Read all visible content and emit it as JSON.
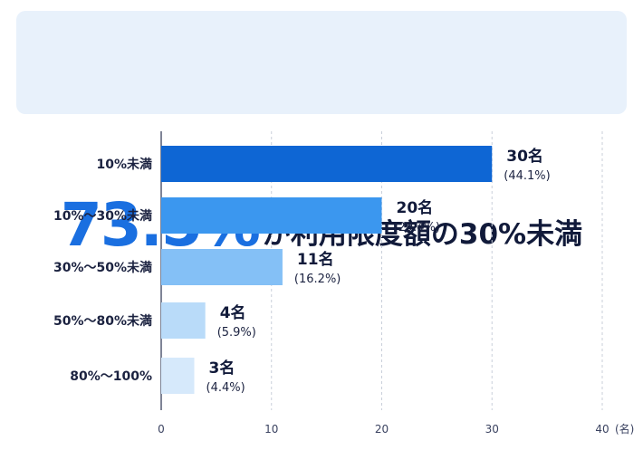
{
  "headline": {
    "big": "73.5%",
    "rest": "が利用限度額の30%未満"
  },
  "colors": {
    "headline_bg": "#e8f1fb",
    "headline_accent": "#1a6fe0",
    "bars": [
      "#0e66d4",
      "#3b97ef",
      "#84c0f6",
      "#b9dbf9",
      "#d6e9fb"
    ]
  },
  "chart_data": {
    "type": "bar",
    "orientation": "horizontal",
    "categories": [
      "10%未満",
      "10%〜30%未満",
      "30%〜50%未満",
      "50%〜80%未満",
      "80%〜100%"
    ],
    "values": [
      30,
      20,
      11,
      4,
      3
    ],
    "value_labels": [
      "30名",
      "20名",
      "11名",
      "4名",
      "3名"
    ],
    "percent_labels": [
      "(44.1%)",
      "(29.4%)",
      "(16.2%)",
      "(5.9%)",
      "(4.4%)"
    ],
    "xlim": [
      0,
      40
    ],
    "xticks": [
      0,
      10,
      20,
      30,
      40
    ],
    "xtick_labels": [
      "0",
      "10",
      "20",
      "30",
      "40"
    ],
    "x_unit": "(名)",
    "grid": true
  }
}
